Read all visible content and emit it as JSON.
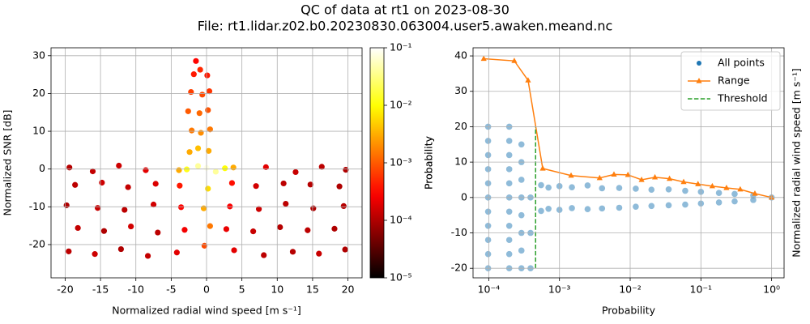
{
  "figure": {
    "title": "QC of data at rt1 on 2023-08-30",
    "subtitle": "File: rt1.lidar.z02.b0.20230830.063004.user5.awaken.meand.nc"
  },
  "chart_data": [
    {
      "type": "scatter",
      "xlabel": "Normalized radial wind speed [m s⁻¹]",
      "ylabel": "Normalized SNR [dB]",
      "xlim": [
        -22,
        22
      ],
      "ylim": [
        -28.8,
        32.1
      ],
      "xticks": [
        -20,
        -15,
        -10,
        -5,
        0,
        5,
        10,
        15,
        20
      ],
      "yticks": [
        -20,
        -10,
        0,
        10,
        20,
        30
      ],
      "grid": true,
      "colormap": "hot",
      "colorbar": {
        "label": "Probability",
        "scale": "log",
        "lim": [
          1e-05,
          0.1
        ],
        "ticks": [
          {
            "value": 1e-05,
            "label": "10⁻⁵"
          },
          {
            "value": 0.0001,
            "label": "10⁻⁴"
          },
          {
            "value": 0.001,
            "label": "10⁻³"
          },
          {
            "value": 0.01,
            "label": "10⁻²"
          },
          {
            "value": 0.1,
            "label": "10⁻¹"
          }
        ]
      },
      "series": [
        {
          "x": [
            -19.5,
            -15.8,
            -12.1,
            -8.3,
            -4.2,
            3.9,
            8.1,
            12.2,
            15.9,
            19.6,
            -18.2,
            -14.5,
            -10.7,
            -6.9,
            -3.1,
            2.8,
            6.6,
            10.4,
            14.3,
            18.1,
            -19.8,
            -15.4,
            -11.6,
            -7.5,
            -3.6,
            3.3,
            7.4,
            11.2,
            15.1,
            19.4,
            -18.6,
            -14.8,
            -11.1,
            -7.2,
            -3.8,
            3.6,
            7.0,
            10.9,
            14.7,
            18.8,
            -19.4,
            -16.1,
            -12.4,
            -8.6,
            8.4,
            12.6,
            16.3,
            19.7,
            -2.4,
            -1.2,
            0.3,
            -2.1,
            -0.8,
            0.5,
            -2.6,
            -1.0,
            0.2,
            -2.2,
            -0.6,
            0.4,
            -1.8,
            -0.9,
            0.1,
            -1.5,
            0,
            -1.2,
            1.3,
            2.6,
            -2.8,
            0.2,
            -0.4,
            0.5,
            -0.3,
            3.8,
            -3.9
          ],
          "y": [
            -21.8,
            -22.5,
            -21.2,
            -23.0,
            -22.1,
            -21.5,
            -22.8,
            -21.9,
            -22.4,
            -21.3,
            -15.6,
            -16.4,
            -15.2,
            -16.8,
            -16.1,
            -15.9,
            -16.5,
            -15.4,
            -16.2,
            -15.8,
            -9.6,
            -10.3,
            -10.8,
            -9.4,
            -10.1,
            -9.9,
            -10.6,
            -9.2,
            -10.4,
            -9.8,
            -4.2,
            -3.6,
            -4.8,
            -3.9,
            -4.4,
            -3.7,
            -4.5,
            -3.8,
            -4.1,
            -4.6,
            0.4,
            -0.6,
            0.9,
            -0.3,
            0.5,
            -0.8,
            0.6,
            -0.2,
            4.5,
            5.5,
            4.8,
            10.2,
            9.6,
            10.5,
            15.3,
            14.8,
            15.6,
            20.4,
            19.7,
            20.6,
            25.1,
            26.3,
            24.8,
            28.6,
            0.3,
            0.8,
            -0.7,
            0.2,
            -0.1,
            -5.2,
            -10.4,
            -15.1,
            -20.3,
            0.4,
            -0.3
          ],
          "c": [
            0.00012,
            0.00015,
            0.0001,
            0.00013,
            0.0002,
            0.0002,
            0.00012,
            0.00011,
            0.00014,
            0.0001,
            0.00013,
            0.0001,
            0.00016,
            0.00012,
            0.00025,
            0.00022,
            0.00014,
            0.00011,
            0.00012,
            0.0001,
            0.0001,
            0.00014,
            0.00012,
            0.00016,
            0.0003,
            0.00028,
            0.00015,
            0.00012,
            0.0001,
            0.00011,
            0.00012,
            0.00015,
            0.00013,
            0.00018,
            0.0004,
            0.00035,
            0.00016,
            0.00012,
            0.00011,
            0.0001,
            0.00011,
            0.00013,
            0.00015,
            0.0002,
            0.0002,
            0.00014,
            0.00012,
            0.0001,
            0.003,
            0.004,
            0.003,
            0.0015,
            0.002,
            0.0015,
            0.001,
            0.0012,
            0.0009,
            0.0007,
            0.0008,
            0.0006,
            0.0004,
            0.0005,
            0.0004,
            0.0003,
            0.08,
            0.04,
            0.04,
            0.01,
            0.012,
            0.006,
            0.003,
            0.0015,
            0.0008,
            0.003,
            0.003
          ]
        }
      ]
    },
    {
      "type": "scatter",
      "xscale": "log",
      "xlabel": "Probability",
      "ylabel": "Probability",
      "y2label": "Normalized radial wind speed [m s⁻¹]",
      "xlim": [
        6e-05,
        1.5
      ],
      "ylim": [
        -22.7,
        42.3
      ],
      "xticks": [
        {
          "value": 0.0001,
          "label": "10⁻⁴"
        },
        {
          "value": 0.001,
          "label": "10⁻³"
        },
        {
          "value": 0.01,
          "label": "10⁻²"
        },
        {
          "value": 0.1,
          "label": "10⁻¹"
        },
        {
          "value": 1,
          "label": "10⁰"
        }
      ],
      "yticks": [
        -20,
        -10,
        0,
        10,
        20,
        30,
        40
      ],
      "grid": true,
      "legend": "upper right",
      "series": [
        {
          "name": "All points",
          "color": "#1f77b4",
          "marker": "o",
          "linestyle": null,
          "alpha": 0.5,
          "x": [
            9.8e-05,
            9.8e-05,
            9.8e-05,
            9.8e-05,
            9.8e-05,
            9.8e-05,
            9.8e-05,
            9.8e-05,
            9.8e-05,
            9.8e-05,
            9.8e-05,
            0.000195,
            0.000195,
            0.000195,
            0.000195,
            0.000195,
            0.000195,
            0.000195,
            0.000195,
            0.000195,
            0.000195,
            0.000195,
            0.00029,
            0.00029,
            0.00029,
            0.00029,
            0.00029,
            0.00029,
            0.00029,
            0.00029,
            0.00039,
            0.00039,
            0.00039,
            0.00055,
            0.00055,
            0.0007,
            0.0007,
            0.001,
            0.001,
            0.0015,
            0.0015,
            0.0025,
            0.0025,
            0.004,
            0.004,
            0.007,
            0.007,
            0.012,
            0.012,
            0.02,
            0.02,
            0.035,
            0.035,
            0.06,
            0.06,
            0.1,
            0.1,
            0.18,
            0.18,
            0.3,
            0.3,
            0.55,
            0.55,
            1.0
          ],
          "y": [
            -20,
            -16,
            -12,
            -8,
            -4,
            0,
            4,
            8,
            12,
            16,
            20,
            -20,
            -16,
            -12,
            -8,
            -4,
            0,
            4,
            8,
            12,
            16,
            20,
            -20,
            -15,
            -10,
            -5,
            0,
            5,
            10,
            15,
            -20,
            -10,
            0,
            3.5,
            -3.8,
            2.8,
            -3.2,
            3.2,
            -3.5,
            2.9,
            -3.0,
            3.4,
            -3.3,
            2.6,
            -3.1,
            2.7,
            -2.9,
            2.5,
            -2.6,
            2.2,
            -2.4,
            2.3,
            -2.2,
            1.9,
            -2.0,
            1.6,
            -1.7,
            1.3,
            -1.4,
            1.0,
            -1.1,
            0.6,
            -0.7,
            0.0
          ]
        },
        {
          "name": "Range",
          "color": "#ff7f0e",
          "marker": "^",
          "linestyle": "-",
          "x": [
            8.5e-05,
            0.00023,
            0.00036,
            0.00058,
            0.00146,
            0.0037,
            0.0059,
            0.0093,
            0.0145,
            0.0224,
            0.036,
            0.057,
            0.091,
            0.145,
            0.23,
            0.36,
            0.58,
            1.0
          ],
          "y": [
            39.2,
            38.6,
            33.1,
            8.2,
            6.2,
            5.5,
            6.5,
            6.4,
            5.0,
            5.7,
            5.3,
            4.4,
            3.8,
            3.2,
            2.7,
            2.3,
            1.1,
            0.0
          ]
        },
        {
          "name": "Threshold",
          "color": "#2ca02c",
          "marker": null,
          "linestyle": "--",
          "x": [
            0.00046,
            0.00046
          ],
          "y": [
            -20,
            20
          ]
        }
      ]
    }
  ]
}
